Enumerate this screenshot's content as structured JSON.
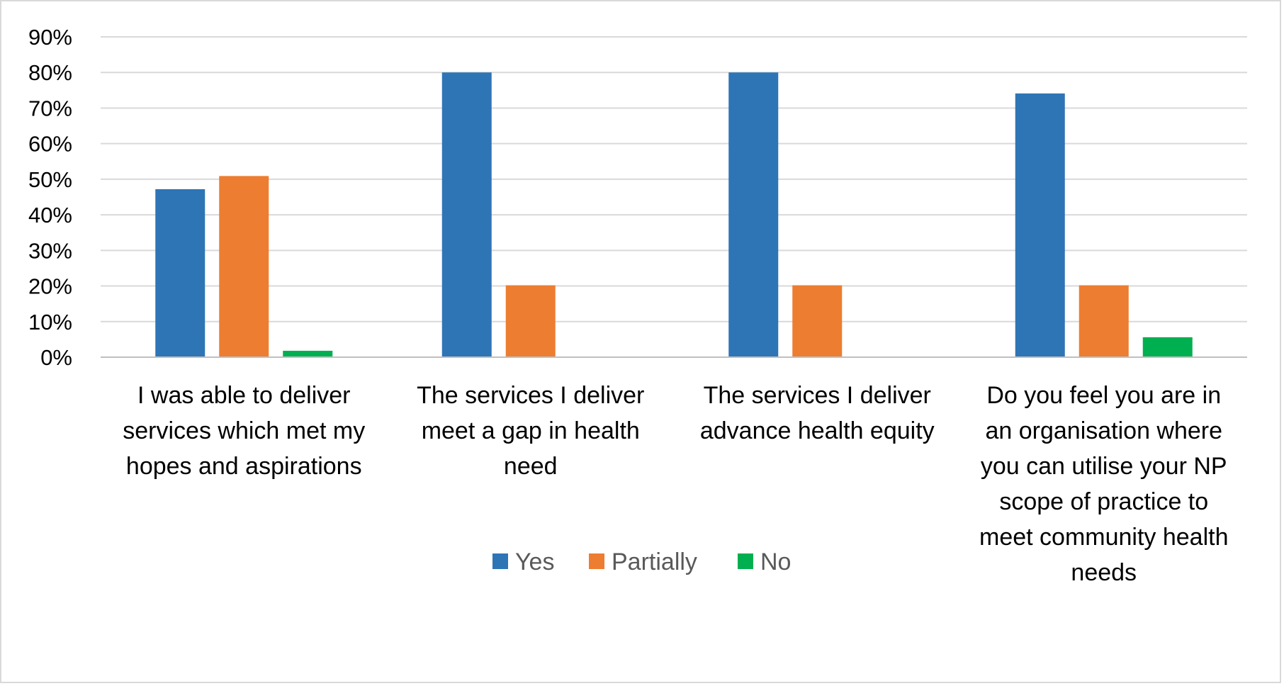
{
  "chart_data": {
    "type": "bar",
    "title": "",
    "xlabel": "",
    "ylabel": "",
    "ylim": [
      0,
      90
    ],
    "yticks": [
      "0%",
      "10%",
      "20%",
      "30%",
      "40%",
      "50%",
      "60%",
      "70%",
      "80%",
      "90%"
    ],
    "grid": true,
    "legend_position": "bottom",
    "categories": [
      [
        "I was able to deliver",
        "services which met my",
        "hopes and aspirations"
      ],
      [
        "The services I deliver",
        "meet a gap in health",
        "need"
      ],
      [
        "The services I deliver",
        "advance health equity"
      ],
      [
        "Do you feel you are in",
        "an organisation where",
        "you can utilise your NP",
        "scope of practice to",
        "meet community health",
        "needs"
      ]
    ],
    "series": [
      {
        "name": "Yes",
        "color": "#2E75B6",
        "values": [
          47.2,
          80,
          80,
          74.1
        ]
      },
      {
        "name": "Partially",
        "color": "#ED7D31",
        "values": [
          50.9,
          20.2,
          20.2,
          20.2
        ]
      },
      {
        "name": "No",
        "color": "#00B050",
        "values": [
          1.8,
          0,
          0,
          5.6
        ]
      }
    ]
  }
}
